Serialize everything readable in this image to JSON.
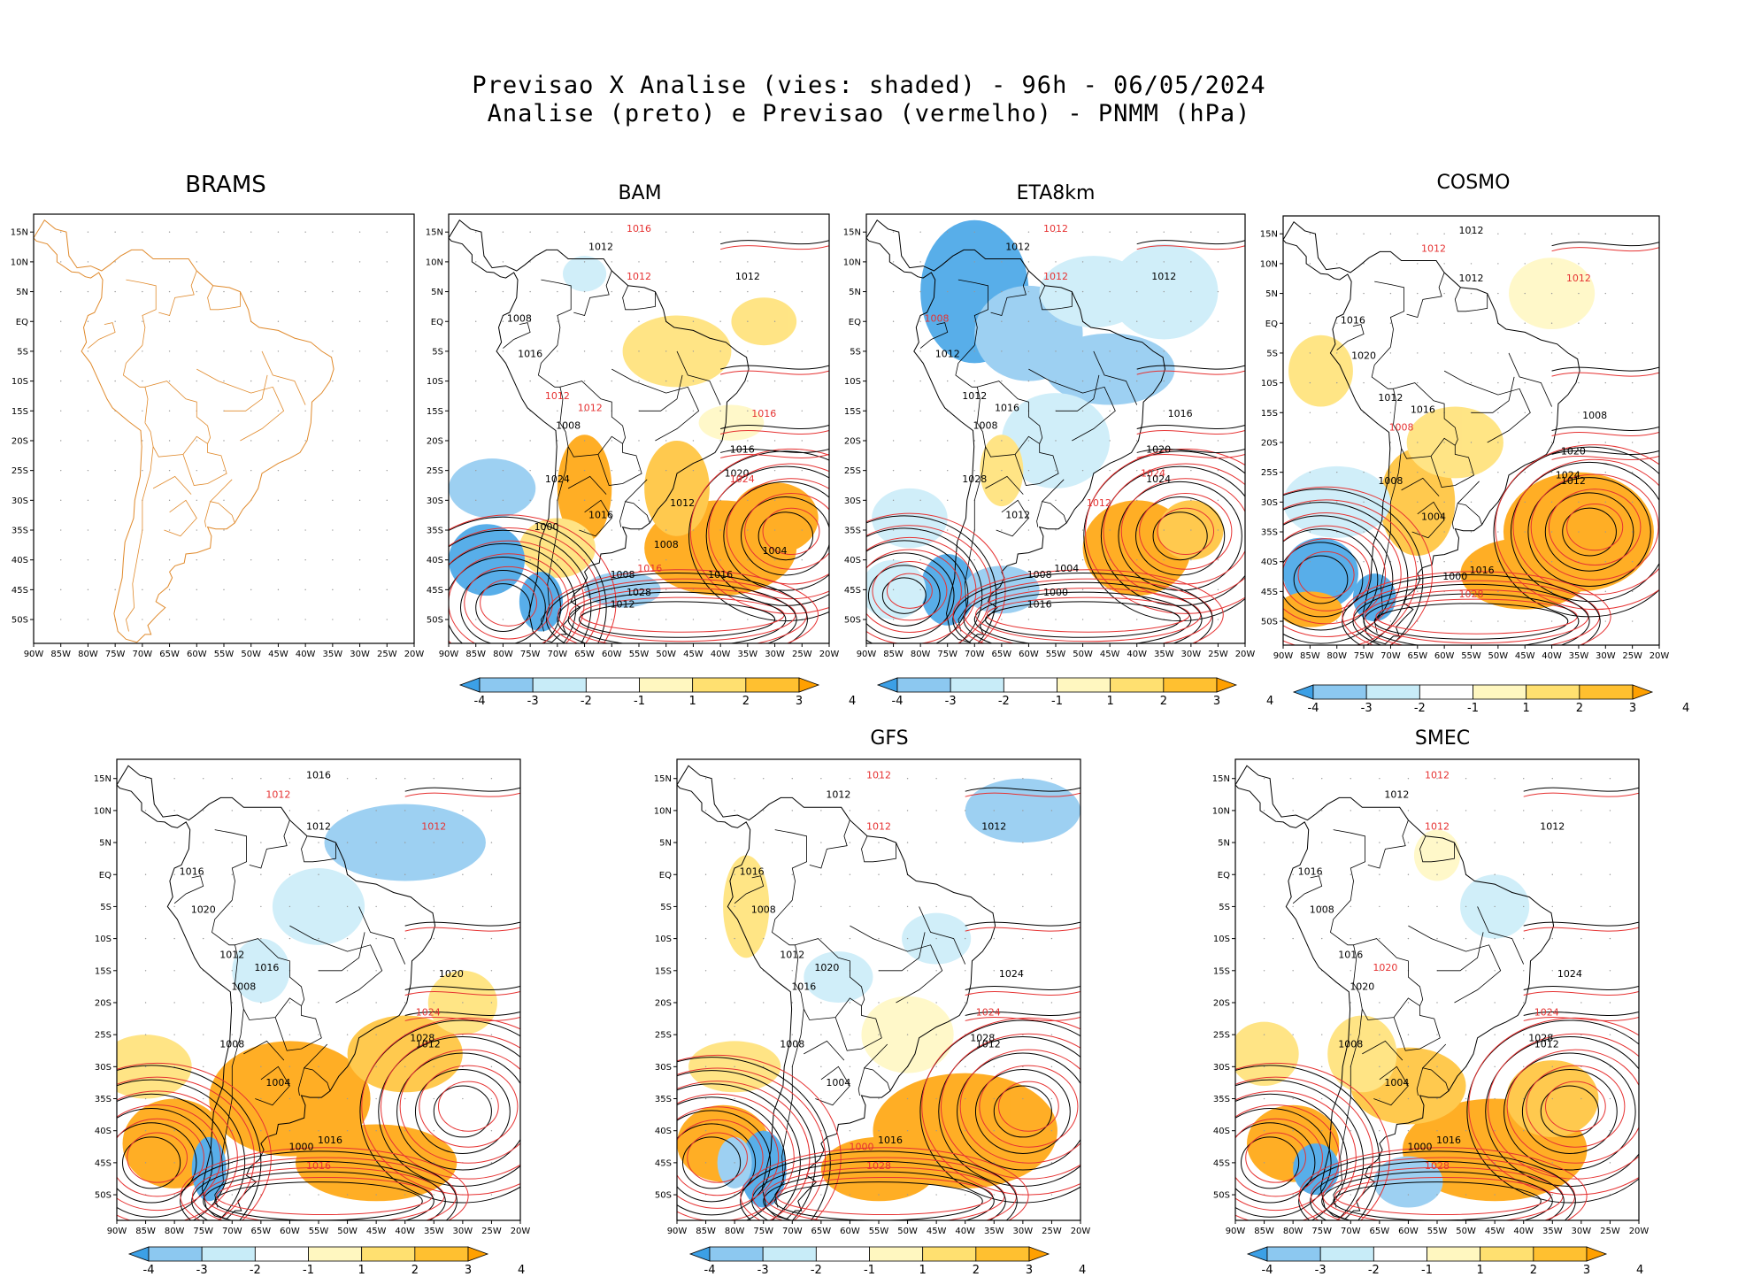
{
  "header": {
    "line1": "Previsao X Analise (vies: shaded) - 96h - 06/05/2024",
    "line2": "Analise (preto) e Previsao (vermelho) - PNMM (hPa)"
  },
  "axes": {
    "lat_labels": [
      "15N",
      "10N",
      "5N",
      "EQ",
      "5S",
      "10S",
      "15S",
      "20S",
      "25S",
      "30S",
      "35S",
      "40S",
      "45S",
      "50S"
    ],
    "lon_labels": [
      "90W",
      "85W",
      "80W",
      "75W",
      "70W",
      "65W",
      "60W",
      "55W",
      "50W",
      "45W",
      "40W",
      "35W",
      "30W",
      "25W",
      "20W"
    ]
  },
  "colorbar": {
    "labels": [
      "-4",
      "-3",
      "-2",
      "-1",
      "1",
      "2",
      "3",
      "4"
    ],
    "colors": [
      "#3ca0e6",
      "#8cc8f0",
      "#c8ecf8",
      "#ffffff",
      "#fff7c0",
      "#ffe070",
      "#ffc030",
      "#ffa000"
    ]
  },
  "colors": {
    "analysis": "#000000",
    "forecast": "#e63232",
    "coast_brams": "#e08a2c"
  },
  "panels": [
    {
      "id": "brams",
      "title": "BRAMS",
      "has_field": false,
      "labels": []
    },
    {
      "id": "bam",
      "title": "BAM",
      "has_field": true,
      "labels": [
        {
          "t": "1016",
          "r": true
        },
        {
          "t": "1012",
          "r": false
        },
        {
          "t": "1012",
          "r": true
        },
        {
          "t": "1012",
          "r": false
        },
        {
          "t": "1008",
          "r": false
        },
        {
          "t": "1016",
          "r": false
        },
        {
          "t": "1012",
          "r": true
        },
        {
          "t": "1008",
          "r": false
        },
        {
          "t": "1012",
          "r": true
        },
        {
          "t": "1016",
          "r": true
        },
        {
          "t": "1016",
          "r": false
        },
        {
          "t": "1020",
          "r": false
        },
        {
          "t": "1024",
          "r": true
        },
        {
          "t": "1024",
          "r": false
        },
        {
          "t": "1016",
          "r": false
        },
        {
          "t": "1008",
          "r": false
        },
        {
          "t": "1016",
          "r": true
        },
        {
          "t": "1028",
          "r": false
        },
        {
          "t": "1012",
          "r": false
        },
        {
          "t": "1012",
          "r": false
        },
        {
          "t": "1008",
          "r": false
        },
        {
          "t": "1004",
          "r": false
        },
        {
          "t": "1000",
          "r": false
        },
        {
          "t": "1016",
          "r": false
        }
      ]
    },
    {
      "id": "eta",
      "title": "ETA8km",
      "has_field": true,
      "labels": [
        {
          "t": "1012",
          "r": true
        },
        {
          "t": "1012",
          "r": false
        },
        {
          "t": "1012",
          "r": true
        },
        {
          "t": "1012",
          "r": false
        },
        {
          "t": "1008",
          "r": true
        },
        {
          "t": "1012",
          "r": false
        },
        {
          "t": "1012",
          "r": false
        },
        {
          "t": "1008",
          "r": false
        },
        {
          "t": "1016",
          "r": false
        },
        {
          "t": "1016",
          "r": false
        },
        {
          "t": "1020",
          "r": false
        },
        {
          "t": "1024",
          "r": true
        },
        {
          "t": "1024",
          "r": false
        },
        {
          "t": "1028",
          "r": false
        },
        {
          "t": "1012",
          "r": false
        },
        {
          "t": "1008",
          "r": false
        },
        {
          "t": "1004",
          "r": false
        },
        {
          "t": "1000",
          "r": false
        },
        {
          "t": "1016",
          "r": false
        },
        {
          "t": "1012",
          "r": true
        }
      ]
    },
    {
      "id": "cosmo",
      "title": "COSMO",
      "has_field": true,
      "labels": [
        {
          "t": "1012",
          "r": false
        },
        {
          "t": "1012",
          "r": true
        },
        {
          "t": "1012",
          "r": false
        },
        {
          "t": "1012",
          "r": true
        },
        {
          "t": "1016",
          "r": false
        },
        {
          "t": "1020",
          "r": false
        },
        {
          "t": "1012",
          "r": false
        },
        {
          "t": "1008",
          "r": true
        },
        {
          "t": "1016",
          "r": false
        },
        {
          "t": "1008",
          "r": false
        },
        {
          "t": "1020",
          "r": false
        },
        {
          "t": "1024",
          "r": false
        },
        {
          "t": "1012",
          "r": false
        },
        {
          "t": "1008",
          "r": false
        },
        {
          "t": "1004",
          "r": false
        },
        {
          "t": "1000",
          "r": false
        },
        {
          "t": "1016",
          "r": false
        },
        {
          "t": "1028",
          "r": true
        }
      ]
    },
    {
      "id": "p5",
      "title": "",
      "has_field": true,
      "labels": [
        {
          "t": "1016",
          "r": false
        },
        {
          "t": "1012",
          "r": true
        },
        {
          "t": "1012",
          "r": false
        },
        {
          "t": "1012",
          "r": true
        },
        {
          "t": "1016",
          "r": false
        },
        {
          "t": "1020",
          "r": false
        },
        {
          "t": "1012",
          "r": false
        },
        {
          "t": "1008",
          "r": false
        },
        {
          "t": "1016",
          "r": false
        },
        {
          "t": "1020",
          "r": false
        },
        {
          "t": "1024",
          "r": true
        },
        {
          "t": "1028",
          "r": false
        },
        {
          "t": "1012",
          "r": false
        },
        {
          "t": "1008",
          "r": false
        },
        {
          "t": "1004",
          "r": false
        },
        {
          "t": "1000",
          "r": false
        },
        {
          "t": "1016",
          "r": false
        },
        {
          "t": "1016",
          "r": true
        }
      ]
    },
    {
      "id": "gfs",
      "title": "GFS",
      "has_field": true,
      "labels": [
        {
          "t": "1012",
          "r": true
        },
        {
          "t": "1012",
          "r": false
        },
        {
          "t": "1012",
          "r": true
        },
        {
          "t": "1012",
          "r": false
        },
        {
          "t": "1016",
          "r": false
        },
        {
          "t": "1008",
          "r": false
        },
        {
          "t": "1012",
          "r": false
        },
        {
          "t": "1016",
          "r": false
        },
        {
          "t": "1020",
          "r": false
        },
        {
          "t": "1024",
          "r": false
        },
        {
          "t": "1024",
          "r": true
        },
        {
          "t": "1028",
          "r": false
        },
        {
          "t": "1012",
          "r": false
        },
        {
          "t": "1008",
          "r": false
        },
        {
          "t": "1004",
          "r": false
        },
        {
          "t": "1000",
          "r": true
        },
        {
          "t": "1016",
          "r": false
        },
        {
          "t": "1028",
          "r": true
        }
      ]
    },
    {
      "id": "smec",
      "title": "SMEC",
      "has_field": true,
      "labels": [
        {
          "t": "1012",
          "r": true
        },
        {
          "t": "1012",
          "r": false
        },
        {
          "t": "1012",
          "r": true
        },
        {
          "t": "1012",
          "r": false
        },
        {
          "t": "1016",
          "r": false
        },
        {
          "t": "1008",
          "r": false
        },
        {
          "t": "1016",
          "r": false
        },
        {
          "t": "1020",
          "r": false
        },
        {
          "t": "1020",
          "r": true
        },
        {
          "t": "1024",
          "r": false
        },
        {
          "t": "1024",
          "r": true
        },
        {
          "t": "1028",
          "r": false
        },
        {
          "t": "1012",
          "r": false
        },
        {
          "t": "1008",
          "r": false
        },
        {
          "t": "1004",
          "r": false
        },
        {
          "t": "1000",
          "r": false
        },
        {
          "t": "1016",
          "r": false
        },
        {
          "t": "1028",
          "r": true
        }
      ]
    }
  ]
}
